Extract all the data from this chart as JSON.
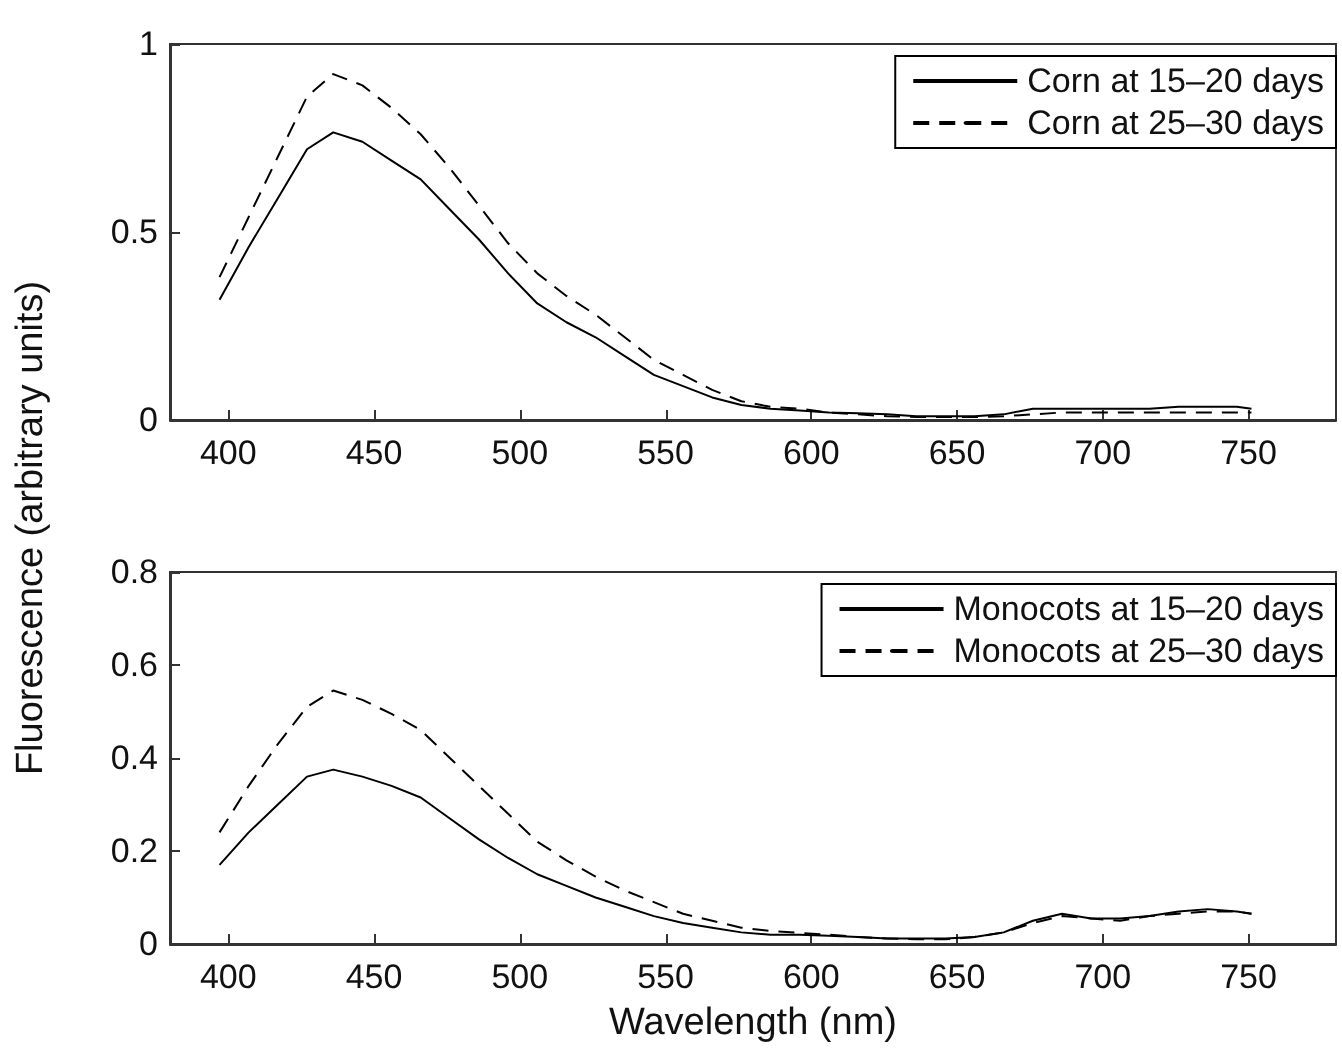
{
  "chart_data": [
    {
      "type": "line",
      "ylabel": "Fluorescence (arbitrary units)",
      "legend": "top right",
      "grid": false,
      "marker": "none",
      "x": [
        397,
        407,
        417,
        427,
        436,
        446,
        456,
        466,
        476,
        486,
        496,
        506,
        516,
        526,
        536,
        546,
        556,
        566,
        576,
        586,
        596,
        606,
        616,
        626,
        636,
        646,
        656,
        666,
        676,
        686,
        696,
        706,
        716,
        726,
        736,
        746,
        751
      ],
      "xlim": [
        380,
        780
      ],
      "xticks": [
        400,
        450,
        500,
        550,
        600,
        650,
        700,
        750
      ],
      "ylim": [
        0,
        1
      ],
      "yticks": [
        0,
        0.5,
        1
      ],
      "series": [
        {
          "name": "Corn at 15–20 days",
          "color": "#000000",
          "line_style": "solid",
          "values": [
            0.32,
            0.46,
            0.59,
            0.72,
            0.765,
            0.74,
            0.69,
            0.64,
            0.56,
            0.48,
            0.39,
            0.31,
            0.26,
            0.22,
            0.17,
            0.12,
            0.09,
            0.06,
            0.04,
            0.03,
            0.025,
            0.02,
            0.018,
            0.015,
            0.01,
            0.01,
            0.01,
            0.015,
            0.03,
            0.03,
            0.03,
            0.03,
            0.03,
            0.035,
            0.035,
            0.035,
            0.03
          ]
        },
        {
          "name": "Corn at 25–30 days",
          "color": "#000000",
          "line_style": "dashed",
          "values": [
            0.38,
            0.54,
            0.7,
            0.86,
            0.92,
            0.89,
            0.83,
            0.76,
            0.67,
            0.57,
            0.47,
            0.39,
            0.33,
            0.28,
            0.22,
            0.16,
            0.12,
            0.08,
            0.05,
            0.035,
            0.03,
            0.02,
            0.015,
            0.01,
            0.008,
            0.008,
            0.008,
            0.01,
            0.015,
            0.02,
            0.02,
            0.02,
            0.02,
            0.02,
            0.02,
            0.02,
            0.02
          ]
        }
      ]
    },
    {
      "type": "line",
      "xlabel": "Wavelength (nm)",
      "legend": "top right",
      "grid": false,
      "marker": "none",
      "x": [
        397,
        407,
        417,
        427,
        436,
        446,
        456,
        466,
        476,
        486,
        496,
        506,
        516,
        526,
        536,
        546,
        556,
        566,
        576,
        586,
        596,
        606,
        616,
        626,
        636,
        646,
        656,
        666,
        676,
        686,
        696,
        706,
        716,
        726,
        736,
        746,
        751
      ],
      "xlim": [
        380,
        780
      ],
      "xticks": [
        400,
        450,
        500,
        550,
        600,
        650,
        700,
        750
      ],
      "ylim": [
        0,
        0.8
      ],
      "yticks": [
        0,
        0.2,
        0.4,
        0.6,
        0.8
      ],
      "series": [
        {
          "name": "Monocots at 15–20 days",
          "color": "#000000",
          "line_style": "solid",
          "values": [
            0.17,
            0.24,
            0.3,
            0.36,
            0.375,
            0.36,
            0.34,
            0.315,
            0.27,
            0.225,
            0.185,
            0.15,
            0.125,
            0.1,
            0.08,
            0.06,
            0.045,
            0.035,
            0.025,
            0.02,
            0.02,
            0.018,
            0.015,
            0.012,
            0.012,
            0.012,
            0.015,
            0.025,
            0.05,
            0.065,
            0.055,
            0.055,
            0.06,
            0.07,
            0.075,
            0.07,
            0.065
          ]
        },
        {
          "name": "Monocots at 25–30 days",
          "color": "#000000",
          "line_style": "dashed",
          "values": [
            0.24,
            0.34,
            0.43,
            0.51,
            0.545,
            0.525,
            0.495,
            0.46,
            0.4,
            0.34,
            0.28,
            0.22,
            0.18,
            0.145,
            0.115,
            0.09,
            0.065,
            0.05,
            0.035,
            0.028,
            0.024,
            0.02,
            0.015,
            0.012,
            0.01,
            0.01,
            0.015,
            0.025,
            0.045,
            0.06,
            0.055,
            0.05,
            0.06,
            0.065,
            0.07,
            0.07,
            0.065
          ]
        }
      ]
    }
  ]
}
